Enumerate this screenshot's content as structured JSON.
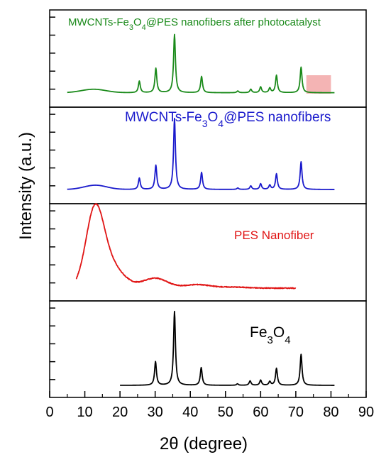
{
  "chart_data": {
    "type": "line",
    "xlabel": "2θ (degree)",
    "ylabel": "Intensity (a.u.)",
    "xlim": [
      0,
      90
    ],
    "x_ticks": [
      0,
      10,
      20,
      30,
      40,
      50,
      60,
      70,
      80,
      90
    ],
    "layout": "four vertically stacked panels sharing the x-axis",
    "panels": [
      {
        "label": {
          "text": "MWCNTs-Fe",
          "sub1": "3",
          "mid": "O",
          "sub2": "4",
          "tail": "@PES nanofibers after photocatalyst"
        },
        "color": "#1a8a1a",
        "x_range": [
          5,
          81
        ],
        "baseline": 0.04,
        "humps": [
          [
            12.5,
            0.06,
            3.5
          ]
        ],
        "peaks": [
          [
            25.5,
            0.2
          ],
          [
            30.2,
            0.42
          ],
          [
            35.5,
            1.0
          ],
          [
            43.2,
            0.28
          ],
          [
            53.5,
            0.03
          ],
          [
            57.2,
            0.06
          ],
          [
            60,
            0.1
          ],
          [
            62.6,
            0.08
          ],
          [
            64.5,
            0.3
          ],
          [
            71.5,
            0.44
          ]
        ],
        "annotation_box": {
          "color": "#f4b4b4",
          "x_from": 73,
          "x_to": 80
        }
      },
      {
        "label": {
          "text": "MWCNTs-Fe",
          "sub1": "3",
          "mid": "O",
          "sub2": "4",
          "tail": "@PES nanofibers"
        },
        "color": "#1a1acc",
        "x_range": [
          5,
          81
        ],
        "baseline": 0.03,
        "humps": [
          [
            13,
            0.06,
            3.2
          ]
        ],
        "peaks": [
          [
            25.5,
            0.16
          ],
          [
            30.2,
            0.34
          ],
          [
            35.5,
            1.0
          ],
          [
            43.2,
            0.24
          ],
          [
            53.5,
            0.02
          ],
          [
            57.2,
            0.05
          ],
          [
            60,
            0.08
          ],
          [
            62.6,
            0.06
          ],
          [
            64.5,
            0.22
          ],
          [
            71.5,
            0.39
          ]
        ],
        "annotation_box": null
      },
      {
        "label": {
          "text": "PES Nanofiber",
          "sub1": "",
          "mid": "",
          "sub2": "",
          "tail": ""
        },
        "color": "#e01414",
        "x_range": [
          7.5,
          70
        ],
        "baseline": 0.02,
        "humps": [
          [
            12.8,
            0.95,
            2.5
          ],
          [
            16.5,
            0.35,
            4.0
          ],
          [
            30,
            0.14,
            3.5
          ],
          [
            42,
            0.05,
            3.5
          ],
          [
            52,
            0.015,
            4
          ]
        ],
        "peaks": [],
        "annotation_box": null
      },
      {
        "label": {
          "text": "Fe",
          "sub1": "3",
          "mid": "O",
          "sub2": "4",
          "tail": ""
        },
        "color": "#000000",
        "x_range": [
          20,
          81
        ],
        "baseline": 0.0,
        "humps": [],
        "peaks": [
          [
            30.1,
            0.32
          ],
          [
            35.5,
            1.0
          ],
          [
            43.1,
            0.24
          ],
          [
            53.4,
            0.02
          ],
          [
            57.0,
            0.06
          ],
          [
            60,
            0.07
          ],
          [
            62.6,
            0.05
          ],
          [
            64.5,
            0.23
          ],
          [
            71.5,
            0.42
          ]
        ],
        "annotation_box": null
      }
    ]
  }
}
